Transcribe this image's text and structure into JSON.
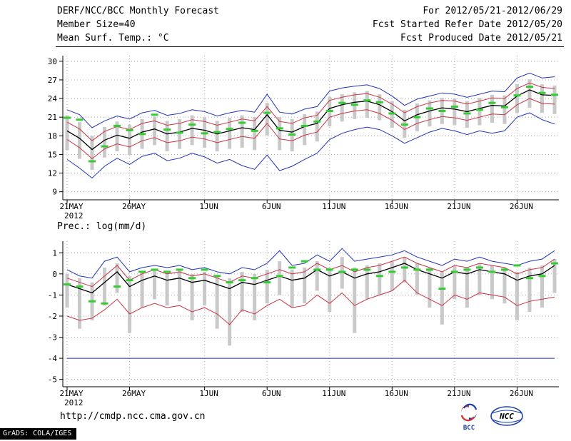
{
  "header": {
    "title": "DERF/NCC/BCC Monthly Forecast",
    "for_range": "For 2012/05/21-2012/06/29",
    "member_size": "Member Size=40",
    "fcst_started": "Fcst Started Refer Date 2012/05/20",
    "var_label": "Mean Surf. Temp.: °C",
    "fcst_produced": "Fcst Produced Date 2012/05/21"
  },
  "footer": {
    "url": "http://cmdp.ncc.cma.gov.cn",
    "grads_credit": "GrADS: COLA/IGES",
    "logos": [
      {
        "label": "BCC"
      },
      {
        "label": "NCC"
      }
    ]
  },
  "colors": {
    "blue": "#2233bb",
    "red": "#cc3344",
    "black": "#000000",
    "green": "#33cc33",
    "bar_gray": "#c9c9c9",
    "grid": "#aaaaaa"
  },
  "chart_data": [
    {
      "id": "temp",
      "type": "line",
      "title": "Mean Surf. Temp.: °C",
      "xlabel": "",
      "ylabel": "°C",
      "ylim": [
        7.7,
        30.9
      ],
      "y_ticks": [
        30,
        27,
        24,
        21,
        18,
        15,
        12,
        9
      ],
      "x_ticks": [
        {
          "day": 0,
          "label": "21MAY"
        },
        {
          "day": 5,
          "label": "26MAY"
        },
        {
          "day": 11,
          "label": "1JUN"
        },
        {
          "day": 16,
          "label": "6JUN"
        },
        {
          "day": 21,
          "label": "11JUN"
        },
        {
          "day": 26,
          "label": "16JUN"
        },
        {
          "day": 31,
          "label": "21JUN"
        },
        {
          "day": 36,
          "label": "26JUN"
        }
      ],
      "x_sub_label": "2012",
      "n_points": 40,
      "series": [
        {
          "name": "member-max",
          "color": "blue",
          "values": [
            22.2,
            21.4,
            19.3,
            20.4,
            21.2,
            20.7,
            21.7,
            22.1,
            21.3,
            21.6,
            22.2,
            21.9,
            21.2,
            21.7,
            22.1,
            21.8,
            24.7,
            21.8,
            21.5,
            22.3,
            22.7,
            25.2,
            25.7,
            26.0,
            26.2,
            25.6,
            24.4,
            22.9,
            23.9,
            24.4,
            24.9,
            24.7,
            24.2,
            24.7,
            25.2,
            25.1,
            27.3,
            28.1,
            27.3,
            27.5
          ]
        },
        {
          "name": "upper-quartile",
          "color": "red",
          "values": [
            20.2,
            19.1,
            17.2,
            18.7,
            19.5,
            19.0,
            20.0,
            20.4,
            19.7,
            20.0,
            20.6,
            20.3,
            19.7,
            20.2,
            20.7,
            20.4,
            22.7,
            20.3,
            20.0,
            20.9,
            21.3,
            23.7,
            24.2,
            24.6,
            24.8,
            24.2,
            23.1,
            21.7,
            22.7,
            23.3,
            23.7,
            23.6,
            23.1,
            23.6,
            24.1,
            24.0,
            25.6,
            26.5,
            25.8,
            25.6
          ]
        },
        {
          "name": "ensemble-mean",
          "color": "black",
          "values": [
            18.8,
            17.6,
            15.8,
            17.3,
            18.1,
            17.6,
            18.6,
            19.1,
            18.3,
            18.6,
            19.2,
            18.9,
            18.3,
            18.8,
            19.3,
            19.0,
            21.4,
            18.9,
            18.6,
            19.5,
            20.0,
            22.4,
            23.0,
            23.4,
            23.6,
            23.0,
            21.9,
            20.4,
            21.4,
            22.0,
            22.5,
            22.3,
            21.9,
            22.4,
            22.9,
            22.8,
            24.4,
            25.4,
            24.6,
            24.5
          ]
        },
        {
          "name": "lower-quartile",
          "color": "red",
          "values": [
            17.4,
            16.1,
            14.3,
            15.9,
            16.7,
            16.2,
            17.2,
            17.7,
            16.9,
            17.2,
            17.8,
            17.5,
            16.9,
            17.4,
            17.9,
            17.6,
            20.0,
            17.5,
            17.2,
            18.1,
            18.6,
            21.0,
            21.6,
            22.0,
            22.2,
            21.6,
            20.5,
            19.0,
            20.0,
            20.6,
            21.1,
            20.9,
            20.5,
            21.0,
            21.5,
            21.4,
            23.0,
            24.0,
            23.2,
            23.1
          ]
        },
        {
          "name": "member-min",
          "color": "blue",
          "values": [
            14.2,
            12.8,
            11.2,
            13.1,
            14.4,
            13.4,
            14.7,
            15.2,
            14.0,
            14.4,
            15.2,
            14.6,
            13.6,
            14.2,
            13.2,
            12.6,
            14.9,
            12.4,
            13.1,
            14.2,
            15.2,
            17.4,
            18.4,
            19.0,
            19.4,
            19.0,
            18.0,
            16.8,
            17.7,
            18.6,
            19.2,
            18.8,
            18.2,
            18.8,
            18.4,
            18.8,
            21.0,
            21.7,
            20.6,
            19.9
          ]
        }
      ],
      "bars": {
        "top": [
          21.3,
          20.2,
          18.0,
          19.4,
          20.3,
          19.8,
          20.7,
          21.1,
          20.4,
          20.7,
          21.3,
          21.0,
          20.4,
          20.9,
          21.3,
          21.0,
          23.3,
          21.0,
          20.7,
          21.5,
          21.9,
          24.3,
          24.7,
          25.0,
          25.2,
          24.7,
          23.6,
          22.2,
          23.2,
          23.7,
          24.1,
          24.0,
          23.6,
          24.1,
          24.6,
          24.5,
          26.3,
          27.1,
          26.3,
          26.1
        ],
        "bottom": [
          15.7,
          14.3,
          12.5,
          14.5,
          15.5,
          14.9,
          15.9,
          16.5,
          15.5,
          15.9,
          16.5,
          16.1,
          15.5,
          15.9,
          16.1,
          15.7,
          18.1,
          15.7,
          15.5,
          16.5,
          17.1,
          19.5,
          20.3,
          20.7,
          20.9,
          20.5,
          19.3,
          17.7,
          18.7,
          19.5,
          19.9,
          19.7,
          19.3,
          19.7,
          20.1,
          19.9,
          21.7,
          22.5,
          21.7,
          21.5
        ]
      },
      "green_dashes": [
        20.9,
        20.6,
        13.9,
        16.3,
        19.6,
        18.9,
        18.3,
        21.4,
        19.0,
        18.5,
        19.8,
        18.4,
        18.6,
        19.1,
        20.1,
        18.8,
        21.7,
        19.2,
        18.2,
        19.6,
        20.3,
        22.0,
        23.3,
        23.0,
        23.7,
        23.4,
        21.6,
        19.8,
        21.0,
        22.4,
        22.0,
        22.7,
        21.6,
        22.2,
        23.3,
        22.6,
        24.5,
        25.9,
        24.9,
        24.6
      ]
    },
    {
      "id": "prec",
      "type": "line",
      "title": "Prec.: log(mm/d)",
      "xlabel": "",
      "ylabel": "log(mm/d)",
      "ylim": [
        -5.35,
        1.55
      ],
      "y_ticks": [
        1,
        0,
        -1,
        -2,
        -3,
        -4,
        -5
      ],
      "x_ticks": [
        {
          "day": 0,
          "label": "21MAY"
        },
        {
          "day": 5,
          "label": "26MAY"
        },
        {
          "day": 11,
          "label": "1JUN"
        },
        {
          "day": 16,
          "label": "6JUN"
        },
        {
          "day": 21,
          "label": "11JUN"
        },
        {
          "day": 26,
          "label": "16JUN"
        },
        {
          "day": 31,
          "label": "21JUN"
        },
        {
          "day": 36,
          "label": "26JUN"
        }
      ],
      "x_sub_label": "2012",
      "n_points": 40,
      "series": [
        {
          "name": "member-max",
          "color": "blue",
          "values": [
            0.2,
            -0.1,
            -0.2,
            0.6,
            0.8,
            0.1,
            0.3,
            0.4,
            0.3,
            0.4,
            0.2,
            0.3,
            0.1,
            0.0,
            0.3,
            0.2,
            0.5,
            1.1,
            0.4,
            0.5,
            0.9,
            0.6,
            1.2,
            0.6,
            0.7,
            0.8,
            0.9,
            1.1,
            0.8,
            0.6,
            0.4,
            0.7,
            0.6,
            0.8,
            0.6,
            0.5,
            0.4,
            0.6,
            0.7,
            1.1
          ]
        },
        {
          "name": "upper-quartile",
          "color": "red",
          "values": [
            -0.2,
            -0.4,
            -0.6,
            -0.1,
            0.4,
            -0.3,
            0.0,
            0.2,
            0.0,
            0.1,
            -0.1,
            0.0,
            -0.2,
            -0.4,
            -0.1,
            -0.2,
            0.0,
            0.2,
            0.0,
            0.1,
            0.5,
            0.2,
            0.4,
            0.1,
            0.3,
            0.4,
            0.6,
            0.8,
            0.5,
            0.3,
            0.1,
            0.4,
            0.3,
            0.5,
            0.4,
            0.3,
            0.0,
            0.2,
            0.3,
            0.7
          ]
        },
        {
          "name": "ensemble-mean",
          "color": "black",
          "values": [
            -0.5,
            -0.7,
            -0.9,
            -0.4,
            0.1,
            -0.6,
            -0.3,
            -0.1,
            -0.3,
            -0.2,
            -0.4,
            -0.3,
            -0.5,
            -0.7,
            -0.4,
            -0.5,
            -0.3,
            -0.1,
            -0.3,
            -0.2,
            0.2,
            -0.1,
            0.1,
            -0.2,
            0.0,
            0.1,
            0.3,
            0.5,
            0.2,
            0.0,
            -0.2,
            0.1,
            0.0,
            0.2,
            0.1,
            0.0,
            -0.3,
            -0.1,
            0.0,
            0.4
          ]
        },
        {
          "name": "lower-quartile",
          "color": "red",
          "values": [
            -2.0,
            -2.2,
            -2.1,
            -1.7,
            -1.2,
            -1.9,
            -1.6,
            -1.4,
            -1.6,
            -1.5,
            -1.8,
            -1.6,
            -1.9,
            -2.4,
            -1.7,
            -1.9,
            -1.5,
            -1.2,
            -1.6,
            -1.5,
            -1.0,
            -1.4,
            -0.9,
            -1.5,
            -1.2,
            -1.0,
            -0.8,
            -0.3,
            -0.9,
            -1.2,
            -1.5,
            -1.0,
            -1.2,
            -0.9,
            -1.0,
            -1.1,
            -1.5,
            -1.3,
            -1.2,
            -1.1
          ]
        },
        {
          "name": "member-min",
          "color": "blue",
          "values": [
            -4,
            -4,
            -4,
            -4,
            -4,
            -4,
            -4,
            -4,
            -4,
            -4,
            -4,
            -4,
            -4,
            -4,
            -4,
            -4,
            -4,
            -4,
            -4,
            -4,
            -4,
            -4,
            -4,
            -4,
            -4,
            -4,
            -4,
            -4,
            -4,
            -4,
            -4,
            -4,
            -4,
            -4,
            -4,
            -4,
            -4,
            -4,
            -4,
            -4
          ]
        }
      ],
      "bars": {
        "top": [
          0.0,
          -0.2,
          -0.4,
          0.3,
          0.5,
          -0.1,
          0.1,
          0.2,
          0.1,
          0.2,
          0.0,
          0.1,
          -0.1,
          -0.2,
          0.1,
          0.0,
          0.2,
          0.6,
          0.2,
          0.3,
          0.6,
          0.3,
          0.8,
          0.3,
          0.4,
          0.5,
          0.6,
          0.8,
          0.5,
          0.3,
          0.1,
          0.4,
          0.3,
          0.5,
          0.4,
          0.3,
          0.1,
          0.3,
          0.4,
          0.7
        ],
        "bottom": [
          -1.6,
          -2.6,
          -2.2,
          -1.5,
          -0.9,
          -2.8,
          -1.6,
          -1.2,
          -1.5,
          -1.3,
          -2.2,
          -1.5,
          -2.6,
          -3.4,
          -1.8,
          -2.2,
          -1.4,
          -1.0,
          -1.6,
          -1.4,
          -0.8,
          -1.8,
          -0.7,
          -2.8,
          -1.2,
          -1.0,
          -0.8,
          -0.4,
          -1.0,
          -1.6,
          -2.4,
          -1.2,
          -1.6,
          -1.0,
          -1.2,
          -1.4,
          -2.2,
          -1.8,
          -1.6,
          -0.9
        ]
      },
      "green_dashes": [
        -0.5,
        -0.6,
        -1.3,
        -1.4,
        -0.6,
        -0.3,
        0.1,
        0.2,
        0.1,
        0.2,
        -0.2,
        0.2,
        -0.1,
        -0.4,
        -0.3,
        -0.2,
        -0.4,
        -0.1,
        0.3,
        0.6,
        0.2,
        0.2,
        0.1,
        0.2,
        0.2,
        -0.1,
        0.1,
        0.3,
        0.2,
        0.2,
        -0.7,
        0.1,
        0.2,
        0.3,
        0.1,
        0.2,
        0.4,
        -0.2,
        -0.1,
        0.5
      ]
    }
  ]
}
